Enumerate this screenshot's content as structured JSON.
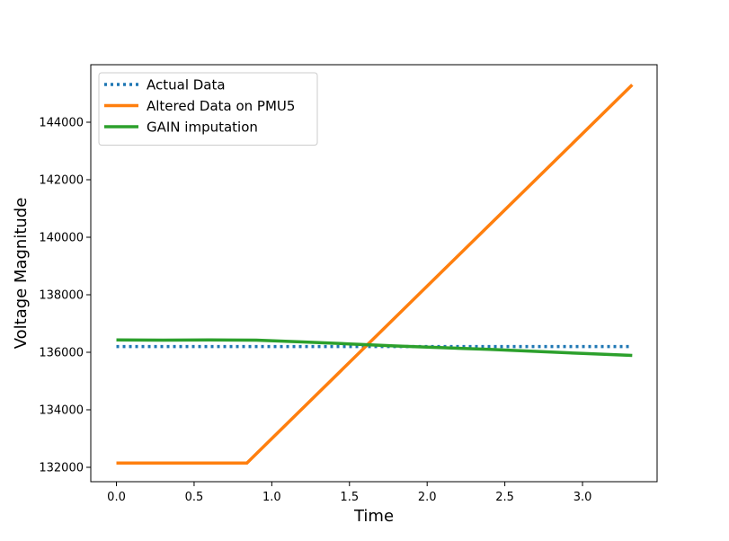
{
  "chart_data": {
    "type": "line",
    "xlabel": "Time",
    "ylabel": "Voltage Magnitude",
    "xlim": [
      -0.165,
      3.48
    ],
    "ylim": [
      131500,
      146000
    ],
    "xticks": [
      0.0,
      0.5,
      1.0,
      1.5,
      2.0,
      2.5,
      3.0
    ],
    "xtick_labels": [
      "0.0",
      "0.5",
      "1.0",
      "1.5",
      "2.0",
      "2.5",
      "3.0"
    ],
    "yticks": [
      132000,
      134000,
      136000,
      138000,
      140000,
      142000,
      144000
    ],
    "ytick_labels": [
      "132000",
      "134000",
      "136000",
      "138000",
      "140000",
      "142000",
      "144000"
    ],
    "grid": false,
    "legend_position": "upper-left",
    "series": [
      {
        "name": "Actual Data",
        "color": "#1f77b4",
        "style": "dotted",
        "x": [
          0.0,
          0.5,
          1.0,
          1.5,
          2.0,
          2.5,
          3.0,
          3.32
        ],
        "y": [
          136200,
          136200,
          136200,
          136200,
          136200,
          136200,
          136200,
          136200
        ]
      },
      {
        "name": "Altered Data on PMU5",
        "color": "#ff7f0e",
        "style": "solid",
        "x": [
          0.0,
          0.84,
          3.32
        ],
        "y": [
          132150,
          132150,
          145300
        ]
      },
      {
        "name": "GAIN imputation",
        "color": "#2ca02c",
        "style": "solid",
        "x": [
          0.0,
          0.3,
          0.6,
          0.9,
          1.2,
          1.5,
          1.8,
          2.1,
          2.4,
          2.7,
          3.0,
          3.32
        ],
        "y": [
          136430,
          136420,
          136430,
          136420,
          136360,
          136290,
          136220,
          136160,
          136100,
          136030,
          135960,
          135890
        ]
      }
    ]
  }
}
